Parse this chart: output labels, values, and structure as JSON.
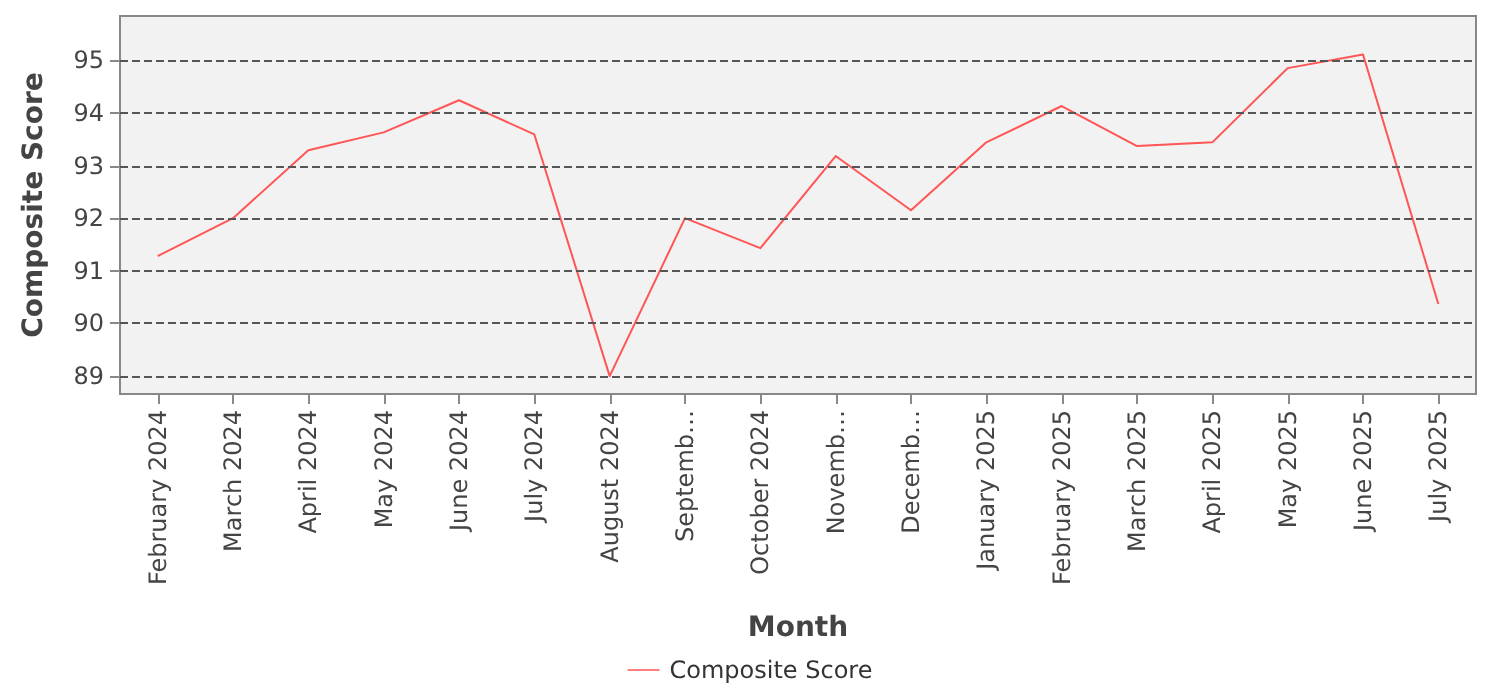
{
  "chart_data": {
    "type": "line",
    "xlabel": "Month",
    "ylabel": "Composite Score",
    "categories": [
      "February 2024",
      "March 2024",
      "April 2024",
      "May 2024",
      "June 2024",
      "July 2024",
      "August 2024",
      "Septemb…",
      "October 2024",
      "Novemb…",
      "Decemb…",
      "January 2025",
      "February 2025",
      "March 2025",
      "April 2025",
      "May 2025",
      "June 2025",
      "July 2025"
    ],
    "series": [
      {
        "name": "Composite Score",
        "color": "#ff5555",
        "values": [
          91.28,
          92.0,
          93.29,
          93.63,
          94.24,
          93.59,
          89.0,
          92.0,
          91.43,
          93.18,
          92.15,
          93.44,
          94.13,
          93.37,
          93.44,
          94.85,
          95.11,
          90.37
        ]
      }
    ],
    "ylim": [
      88.66,
      95.84
    ],
    "yticks": [
      89,
      90,
      91,
      92,
      93,
      94,
      95
    ],
    "grid": "y",
    "legend": "bottom",
    "marker": "none",
    "line_style": "solid"
  }
}
